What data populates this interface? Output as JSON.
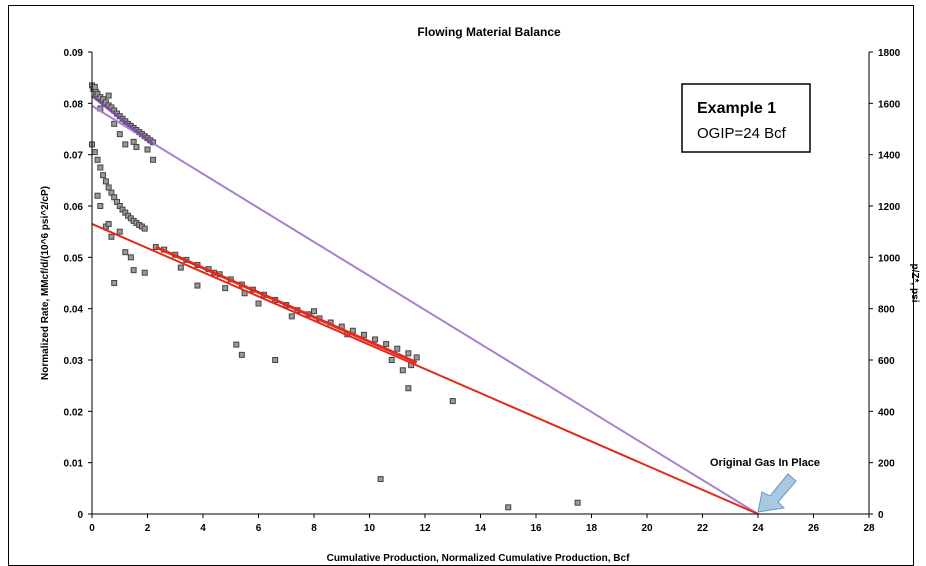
{
  "chart_data": {
    "type": "scatter",
    "title": "Flowing Material Balance",
    "xlabel": "Cumulative Production, Normalized Cumulative Production, Bcf",
    "ylabel": "Normalized Rate, MMcf/d/(10^6 psi^2/cP)",
    "y2label": "p/Z*, psi",
    "xlim": [
      0,
      28
    ],
    "ylim": [
      0,
      0.09
    ],
    "y2lim": [
      0,
      1800
    ],
    "x_ticks": [
      "0",
      "2",
      "4",
      "6",
      "8",
      "10",
      "12",
      "14",
      "16",
      "18",
      "20",
      "22",
      "24",
      "26",
      "28"
    ],
    "y_ticks": [
      "0",
      "0.01",
      "0.02",
      "0.03",
      "0.04",
      "0.05",
      "0.06",
      "0.07",
      "0.08",
      "0.09"
    ],
    "y2_ticks": [
      "0",
      "200",
      "400",
      "600",
      "800",
      "1000",
      "1200",
      "1400",
      "1600",
      "1800"
    ],
    "grid": false,
    "series": [
      {
        "color": "#444444",
        "axis": "left",
        "points": [
          [
            0.0,
            0.0835
          ],
          [
            0.05,
            0.0828
          ],
          [
            0.1,
            0.0832
          ],
          [
            0.15,
            0.0822
          ],
          [
            0.2,
            0.0818
          ],
          [
            0.3,
            0.0812
          ],
          [
            0.4,
            0.0808
          ],
          [
            0.5,
            0.0802
          ],
          [
            0.6,
            0.0796
          ],
          [
            0.7,
            0.0792
          ],
          [
            0.8,
            0.0786
          ],
          [
            0.9,
            0.078
          ],
          [
            1.0,
            0.0775
          ],
          [
            1.1,
            0.077
          ],
          [
            1.2,
            0.0765
          ],
          [
            1.3,
            0.076
          ],
          [
            1.4,
            0.0756
          ],
          [
            1.5,
            0.0752
          ],
          [
            1.6,
            0.0748
          ],
          [
            1.7,
            0.0744
          ],
          [
            1.8,
            0.074
          ],
          [
            1.9,
            0.0736
          ],
          [
            2.0,
            0.0732
          ],
          [
            2.1,
            0.0728
          ],
          [
            2.2,
            0.0724
          ],
          [
            0.3,
            0.079
          ],
          [
            0.6,
            0.0815
          ],
          [
            1.0,
            0.074
          ],
          [
            1.2,
            0.072
          ],
          [
            1.5,
            0.0725
          ],
          [
            2.2,
            0.069
          ],
          [
            2.0,
            0.071
          ],
          [
            0.8,
            0.076
          ],
          [
            1.6,
            0.0715
          ],
          [
            0.0,
            0.072
          ],
          [
            0.1,
            0.0705
          ],
          [
            0.2,
            0.069
          ],
          [
            0.3,
            0.0675
          ],
          [
            0.4,
            0.066
          ],
          [
            0.5,
            0.0648
          ],
          [
            0.6,
            0.0636
          ],
          [
            0.7,
            0.0626
          ],
          [
            0.8,
            0.0617
          ],
          [
            0.9,
            0.0608
          ],
          [
            1.0,
            0.06
          ],
          [
            1.1,
            0.0593
          ],
          [
            1.2,
            0.0587
          ],
          [
            1.3,
            0.0581
          ],
          [
            1.4,
            0.0576
          ],
          [
            1.5,
            0.0571
          ],
          [
            1.6,
            0.0567
          ],
          [
            1.7,
            0.0563
          ],
          [
            1.8,
            0.056
          ],
          [
            1.9,
            0.0556
          ],
          [
            0.2,
            0.062
          ],
          [
            0.3,
            0.06
          ],
          [
            0.5,
            0.056
          ],
          [
            0.7,
            0.054
          ],
          [
            0.6,
            0.0565
          ],
          [
            1.0,
            0.055
          ],
          [
            1.2,
            0.051
          ],
          [
            1.5,
            0.0475
          ],
          [
            1.9,
            0.047
          ],
          [
            0.8,
            0.045
          ],
          [
            1.4,
            0.05
          ],
          [
            2.3,
            0.052
          ],
          [
            2.6,
            0.0515
          ],
          [
            3.0,
            0.0505
          ],
          [
            3.4,
            0.0495
          ],
          [
            3.8,
            0.0485
          ],
          [
            4.2,
            0.0477
          ],
          [
            4.6,
            0.0467
          ],
          [
            5.0,
            0.0457
          ],
          [
            5.4,
            0.0447
          ],
          [
            5.8,
            0.0437
          ],
          [
            6.2,
            0.0427
          ],
          [
            6.6,
            0.0417
          ],
          [
            7.0,
            0.0407
          ],
          [
            7.4,
            0.0397
          ],
          [
            7.8,
            0.0389
          ],
          [
            8.2,
            0.0381
          ],
          [
            8.6,
            0.0373
          ],
          [
            9.0,
            0.0365
          ],
          [
            9.4,
            0.0357
          ],
          [
            9.8,
            0.0349
          ],
          [
            10.2,
            0.034
          ],
          [
            10.6,
            0.0331
          ],
          [
            11.0,
            0.0322
          ],
          [
            11.4,
            0.0313
          ],
          [
            11.7,
            0.0305
          ],
          [
            3.2,
            0.048
          ],
          [
            3.8,
            0.0445
          ],
          [
            4.4,
            0.047
          ],
          [
            4.8,
            0.044
          ],
          [
            5.5,
            0.043
          ],
          [
            6.0,
            0.041
          ],
          [
            7.2,
            0.0385
          ],
          [
            8.0,
            0.0395
          ],
          [
            9.2,
            0.035
          ],
          [
            10.8,
            0.03
          ],
          [
            11.2,
            0.028
          ],
          [
            11.5,
            0.029
          ],
          [
            5.2,
            0.033
          ],
          [
            5.4,
            0.031
          ],
          [
            6.6,
            0.03
          ],
          [
            13.0,
            0.022
          ],
          [
            11.4,
            0.0245
          ],
          [
            10.4,
            0.0068
          ],
          [
            15.0,
            0.0013
          ],
          [
            17.5,
            0.0022
          ]
        ]
      }
    ],
    "lines": [
      {
        "color": "#a97fcf",
        "axis": "left",
        "points": [
          [
            0,
            0.0795
          ],
          [
            24,
            0
          ]
        ]
      },
      {
        "color": "#e32b1b",
        "axis": "left",
        "points": [
          [
            0,
            0.0565
          ],
          [
            24,
            0
          ]
        ]
      },
      {
        "color": "#7a4fa0",
        "axis": "left",
        "points": [
          [
            0,
            0.0815
          ],
          [
            2.2,
            0.072
          ]
        ]
      },
      {
        "color": "#e32b1b",
        "axis": "left",
        "points": [
          [
            2.3,
            0.052
          ],
          [
            11.7,
            0.0295
          ]
        ]
      }
    ],
    "annotations": {
      "box_title": "Example 1",
      "box_body": "OGIP=24 Bcf",
      "arrow_label": "Original Gas In Place",
      "arrow_color": "#a9c8e4"
    }
  }
}
